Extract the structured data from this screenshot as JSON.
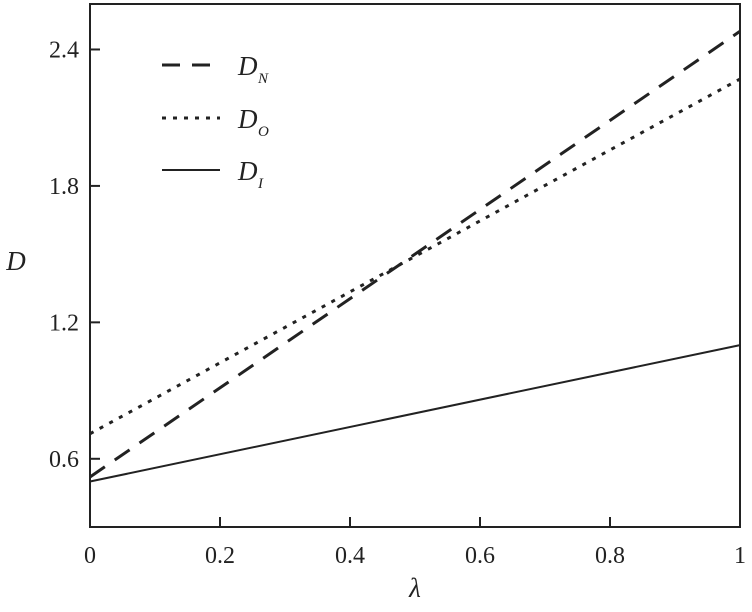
{
  "chart_data": {
    "type": "line",
    "title": "",
    "xlabel": "λ",
    "ylabel": "D",
    "xlim": [
      0,
      1
    ],
    "ylim": [
      0.3,
      2.6
    ],
    "x_ticks": [
      0,
      0.2,
      0.4,
      0.6,
      0.8,
      1
    ],
    "x_tick_labels": [
      "0",
      "0.2",
      "0.4",
      "0.6",
      "0.8",
      "1"
    ],
    "y_ticks": [
      0.6,
      1.2,
      1.8,
      2.4
    ],
    "y_tick_labels": [
      "0.6",
      "1.2",
      "1.8",
      "2.4"
    ],
    "grid": false,
    "legend_position": "top-left",
    "series": [
      {
        "name": "D_N",
        "label_main": "D",
        "label_sub": "N",
        "line_style": "dashed",
        "color": "#222222",
        "x": [
          0,
          1
        ],
        "y": [
          0.52,
          2.48
        ]
      },
      {
        "name": "D_O",
        "label_main": "D",
        "label_sub": "O",
        "line_style": "dotted",
        "color": "#222222",
        "x": [
          0,
          1
        ],
        "y": [
          0.71,
          2.27
        ]
      },
      {
        "name": "D_I",
        "label_main": "D",
        "label_sub": "I",
        "line_style": "solid",
        "color": "#222222",
        "x": [
          0,
          1
        ],
        "y": [
          0.5,
          1.1
        ]
      }
    ]
  }
}
